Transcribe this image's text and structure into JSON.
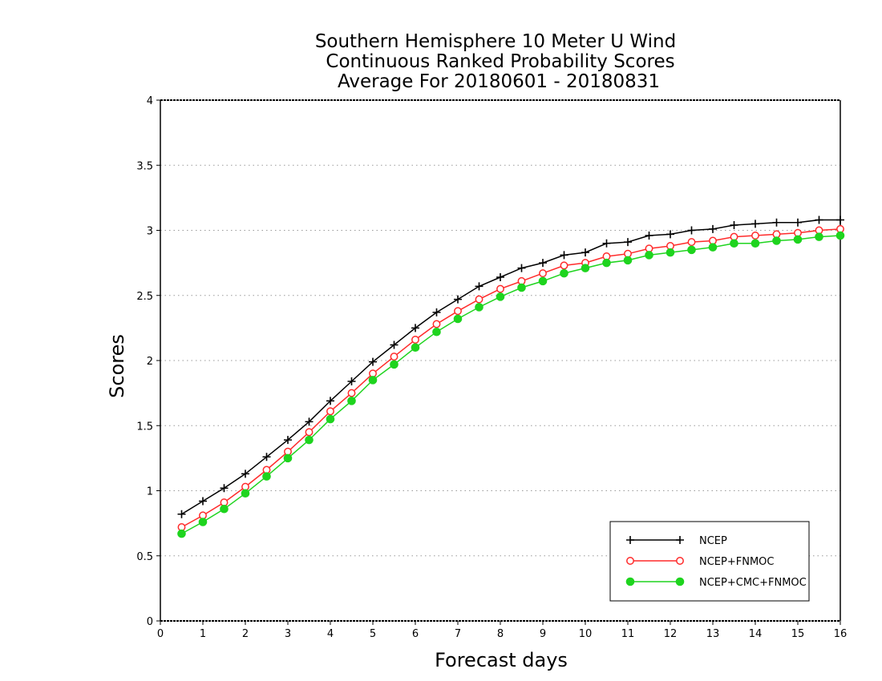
{
  "chart_data": {
    "type": "line",
    "title_lines": [
      "Southern Hemisphere 10 Meter U Wind",
      "Continuous Ranked Probability Scores",
      "Average For 20180601 - 20180831"
    ],
    "xlabel": "Forecast days",
    "ylabel": "Scores",
    "xlim": [
      0,
      16
    ],
    "ylim": [
      0,
      4
    ],
    "xticks": [
      "0",
      "1",
      "2",
      "3",
      "4",
      "5",
      "6",
      "7",
      "8",
      "9",
      "10",
      "11",
      "12",
      "13",
      "14",
      "15",
      "16"
    ],
    "yticks": [
      "0",
      "0.5",
      "1",
      "1.5",
      "2",
      "2.5",
      "3",
      "3.5",
      "4"
    ],
    "grid": true,
    "legend_position": "bottom-right",
    "x": [
      0.5,
      1,
      1.5,
      2,
      2.5,
      3,
      3.5,
      4,
      4.5,
      5,
      5.5,
      6,
      6.5,
      7,
      7.5,
      8,
      8.5,
      9,
      9.5,
      10,
      10.5,
      11,
      11.5,
      12,
      12.5,
      13,
      13.5,
      14,
      14.5,
      15,
      15.5,
      16
    ],
    "series": [
      {
        "name": "NCEP",
        "color": "#000000",
        "marker": "plus",
        "values": [
          0.82,
          0.92,
          1.02,
          1.13,
          1.26,
          1.39,
          1.53,
          1.69,
          1.84,
          1.99,
          2.12,
          2.25,
          2.37,
          2.47,
          2.57,
          2.64,
          2.71,
          2.75,
          2.81,
          2.83,
          2.9,
          2.91,
          2.96,
          2.97,
          3.0,
          3.01,
          3.04,
          3.05,
          3.06,
          3.06,
          3.08,
          3.08
        ]
      },
      {
        "name": "NCEP+FNMOC",
        "color": "#ff2a2a",
        "marker": "open-circle",
        "values": [
          0.72,
          0.81,
          0.91,
          1.03,
          1.16,
          1.3,
          1.45,
          1.61,
          1.75,
          1.9,
          2.03,
          2.16,
          2.28,
          2.38,
          2.47,
          2.55,
          2.61,
          2.67,
          2.73,
          2.75,
          2.8,
          2.82,
          2.86,
          2.88,
          2.91,
          2.92,
          2.95,
          2.96,
          2.97,
          2.98,
          3.0,
          3.01
        ]
      },
      {
        "name": "NCEP+CMC+FNMOC",
        "color": "#1ed41e",
        "marker": "filled-circle",
        "values": [
          0.67,
          0.76,
          0.86,
          0.98,
          1.11,
          1.25,
          1.39,
          1.55,
          1.69,
          1.85,
          1.97,
          2.1,
          2.22,
          2.32,
          2.41,
          2.49,
          2.56,
          2.61,
          2.67,
          2.71,
          2.75,
          2.77,
          2.81,
          2.83,
          2.85,
          2.87,
          2.9,
          2.9,
          2.92,
          2.93,
          2.95,
          2.96
        ]
      }
    ]
  }
}
